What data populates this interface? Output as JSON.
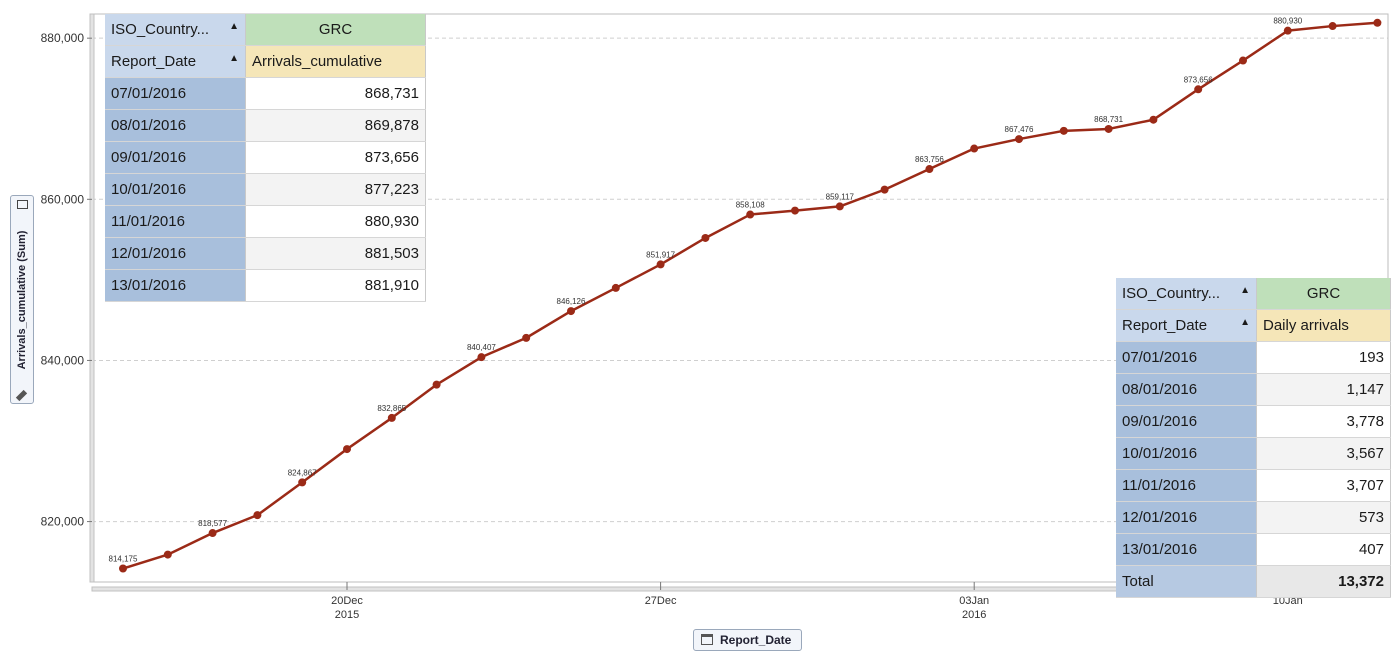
{
  "chart_data": {
    "type": "line",
    "ylabel": "Arrivals_cumulative (Sum)",
    "xlabel": "Report_Date",
    "ylim": [
      812500,
      883000
    ],
    "y_ticks": [
      "820,000",
      "840,000",
      "860,000",
      "880,000"
    ],
    "x_ticks": [
      {
        "date": "2015-12-20",
        "label": "20Dec",
        "year": "2015"
      },
      {
        "date": "2015-12-27",
        "label": "27Dec",
        "year": ""
      },
      {
        "date": "2016-01-03",
        "label": "03Jan",
        "year": "2016"
      },
      {
        "date": "2016-01-10",
        "label": "10Jan",
        "year": ""
      }
    ],
    "grid": true,
    "series": [
      {
        "color": "#9b2a17",
        "points": [
          {
            "x": "2015-12-15",
            "y": 814175,
            "label": "814,175"
          },
          {
            "x": "2015-12-16",
            "y": 815900,
            "label": ""
          },
          {
            "x": "2015-12-17",
            "y": 818577,
            "label": "818,577"
          },
          {
            "x": "2015-12-18",
            "y": 820800,
            "label": ""
          },
          {
            "x": "2015-12-19",
            "y": 824867,
            "label": "824,867"
          },
          {
            "x": "2015-12-20",
            "y": 829000,
            "label": ""
          },
          {
            "x": "2015-12-21",
            "y": 832865,
            "label": "832,865"
          },
          {
            "x": "2015-12-22",
            "y": 837000,
            "label": ""
          },
          {
            "x": "2015-12-23",
            "y": 840407,
            "label": "840,407"
          },
          {
            "x": "2015-12-24",
            "y": 842800,
            "label": ""
          },
          {
            "x": "2015-12-25",
            "y": 846126,
            "label": "846,126"
          },
          {
            "x": "2015-12-26",
            "y": 849000,
            "label": ""
          },
          {
            "x": "2015-12-27",
            "y": 851917,
            "label": "851,917"
          },
          {
            "x": "2015-12-28",
            "y": 855200,
            "label": ""
          },
          {
            "x": "2015-12-29",
            "y": 858108,
            "label": "858,108"
          },
          {
            "x": "2015-12-30",
            "y": 858600,
            "label": ""
          },
          {
            "x": "2015-12-31",
            "y": 859117,
            "label": "859,117"
          },
          {
            "x": "2016-01-01",
            "y": 861200,
            "label": ""
          },
          {
            "x": "2016-01-02",
            "y": 863756,
            "label": "863,756"
          },
          {
            "x": "2016-01-03",
            "y": 866300,
            "label": ""
          },
          {
            "x": "2016-01-04",
            "y": 867476,
            "label": "867,476"
          },
          {
            "x": "2016-01-05",
            "y": 868500,
            "label": ""
          },
          {
            "x": "2016-01-06",
            "y": 868731,
            "label": "868,731"
          },
          {
            "x": "2016-01-07",
            "y": 869878,
            "label": ""
          },
          {
            "x": "2016-01-08",
            "y": 873656,
            "label": "873,656"
          },
          {
            "x": "2016-01-09",
            "y": 877223,
            "label": ""
          },
          {
            "x": "2016-01-10",
            "y": 880930,
            "label": "880,930"
          },
          {
            "x": "2016-01-11",
            "y": 881503,
            "label": ""
          },
          {
            "x": "2016-01-12",
            "y": 881910,
            "label": ""
          }
        ]
      }
    ]
  },
  "table1": {
    "dim_header": "ISO_Country...",
    "col_header": "GRC",
    "row_header": "Report_Date",
    "measure_header": "Arrivals_cumulative",
    "rows": [
      {
        "date": "07/01/2016",
        "value": "868,731"
      },
      {
        "date": "08/01/2016",
        "value": "869,878"
      },
      {
        "date": "09/01/2016",
        "value": "873,656"
      },
      {
        "date": "10/01/2016",
        "value": "877,223"
      },
      {
        "date": "11/01/2016",
        "value": "880,930"
      },
      {
        "date": "12/01/2016",
        "value": "881,503"
      },
      {
        "date": "13/01/2016",
        "value": "881,910"
      }
    ]
  },
  "table2": {
    "dim_header": "ISO_Country...",
    "col_header": "GRC",
    "row_header": "Report_Date",
    "measure_header": "Daily arrivals",
    "rows": [
      {
        "date": "07/01/2016",
        "value": "193"
      },
      {
        "date": "08/01/2016",
        "value": "1,147"
      },
      {
        "date": "09/01/2016",
        "value": "3,778"
      },
      {
        "date": "10/01/2016",
        "value": "3,567"
      },
      {
        "date": "11/01/2016",
        "value": "3,707"
      },
      {
        "date": "12/01/2016",
        "value": "573"
      },
      {
        "date": "13/01/2016",
        "value": "407"
      }
    ],
    "total_label": "Total",
    "total_value": "13,372"
  },
  "sort_glyph": "▲",
  "icons": {
    "x_axis_button": "calendar-icon",
    "y_axis_button": [
      "lock-icon",
      "ruler-icon"
    ]
  }
}
